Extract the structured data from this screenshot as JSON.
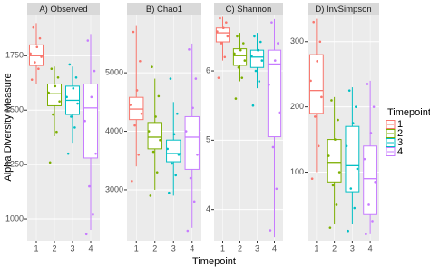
{
  "y_label": "Alpha Diversity Measure",
  "x_label": "Timepoint",
  "legend_title": "Timepoint",
  "chart_data": [
    {
      "type": "box",
      "title": "A) Observed",
      "categories": [
        "1",
        "2",
        "3",
        "4"
      ],
      "ylim": [
        900,
        1935
      ],
      "yticks": [
        1000,
        1250,
        1500,
        1750
      ],
      "series": [
        {
          "name": "1",
          "color": "#F8766D",
          "box": {
            "min": 1620,
            "q1": 1705,
            "median": 1750,
            "q3": 1800,
            "max": 1900
          },
          "points": [
            1640,
            1690,
            1720,
            1745,
            1760,
            1790,
            1830,
            1880
          ]
        },
        {
          "name": "2",
          "color": "#7CAE00",
          "box": {
            "min": 1380,
            "q1": 1520,
            "median": 1575,
            "q3": 1620,
            "max": 1700
          },
          "points": [
            1260,
            1400,
            1480,
            1540,
            1580,
            1610,
            1650,
            1690
          ]
        },
        {
          "name": "3",
          "color": "#00BFC4",
          "box": {
            "min": 1350,
            "q1": 1480,
            "median": 1545,
            "q3": 1610,
            "max": 1700
          },
          "points": [
            1300,
            1420,
            1470,
            1530,
            1560,
            1600,
            1650,
            1710
          ]
        },
        {
          "name": "4",
          "color": "#C77CFF",
          "box": {
            "min": 950,
            "q1": 1280,
            "median": 1510,
            "q3": 1620,
            "max": 1850
          },
          "points": [
            930,
            1020,
            1150,
            1300,
            1450,
            1560,
            1680,
            1820
          ]
        }
      ]
    },
    {
      "type": "box",
      "title": "B) Chao1",
      "categories": [
        "1",
        "2",
        "3",
        "4"
      ],
      "ylim": [
        2130,
        5980
      ],
      "yticks": [
        3000,
        4000,
        5000
      ],
      "series": [
        {
          "name": "1",
          "color": "#F8766D",
          "box": {
            "min": 3400,
            "q1": 4200,
            "median": 4380,
            "q3": 4580,
            "max": 5800
          },
          "points": [
            3150,
            3600,
            4100,
            4300,
            4450,
            4700,
            5200,
            5700
          ]
        },
        {
          "name": "2",
          "color": "#7CAE00",
          "box": {
            "min": 3000,
            "q1": 3700,
            "median": 3900,
            "q3": 4150,
            "max": 4900
          },
          "points": [
            2900,
            3300,
            3650,
            3850,
            4000,
            4250,
            4600,
            5100
          ]
        },
        {
          "name": "3",
          "color": "#00BFC4",
          "box": {
            "min": 2900,
            "q1": 3480,
            "median": 3620,
            "q3": 3850,
            "max": 4500
          },
          "points": [
            2950,
            3250,
            3450,
            3600,
            3700,
            3950,
            4300,
            4900
          ]
        },
        {
          "name": "4",
          "color": "#C77CFF",
          "box": {
            "min": 2350,
            "q1": 3350,
            "median": 3900,
            "q3": 4250,
            "max": 5500
          },
          "points": [
            2300,
            2800,
            3200,
            3600,
            4000,
            4400,
            4900,
            5400
          ]
        }
      ]
    },
    {
      "type": "box",
      "title": "C) Shannon",
      "categories": [
        "1",
        "2",
        "3",
        "4"
      ],
      "ylim": [
        3.55,
        6.8
      ],
      "yticks": [
        4,
        5,
        6
      ],
      "series": [
        {
          "name": "1",
          "color": "#F8766D",
          "box": {
            "min": 6.15,
            "q1": 6.42,
            "median": 6.55,
            "q3": 6.62,
            "max": 6.78
          },
          "points": [
            5.9,
            6.2,
            6.4,
            6.5,
            6.57,
            6.62,
            6.7,
            6.76
          ]
        },
        {
          "name": "2",
          "color": "#7CAE00",
          "box": {
            "min": 5.85,
            "q1": 6.08,
            "median": 6.22,
            "q3": 6.32,
            "max": 6.55
          },
          "points": [
            5.6,
            5.9,
            6.05,
            6.15,
            6.25,
            6.3,
            6.4,
            6.5
          ]
        },
        {
          "name": "3",
          "color": "#00BFC4",
          "box": {
            "min": 5.75,
            "q1": 6.05,
            "median": 6.2,
            "q3": 6.3,
            "max": 6.55
          },
          "points": [
            5.5,
            5.85,
            6.0,
            6.15,
            6.22,
            6.3,
            6.42,
            6.5
          ]
        },
        {
          "name": "4",
          "color": "#C77CFF",
          "box": {
            "min": 3.6,
            "q1": 5.05,
            "median": 6.1,
            "q3": 6.3,
            "max": 6.75
          },
          "points": [
            3.7,
            4.3,
            4.9,
            5.4,
            5.8,
            6.15,
            6.4,
            6.7
          ]
        }
      ]
    },
    {
      "type": "box",
      "title": "D) InvSimpson",
      "categories": [
        "1",
        "2",
        "3",
        "4"
      ],
      "ylim": [
        -5,
        340
      ],
      "yticks": [
        100,
        200,
        300
      ],
      "series": [
        {
          "name": "1",
          "color": "#F8766D",
          "box": {
            "min": 100,
            "q1": 190,
            "median": 225,
            "q3": 280,
            "max": 335
          },
          "points": [
            90,
            140,
            185,
            215,
            240,
            270,
            300,
            330
          ]
        },
        {
          "name": "2",
          "color": "#7CAE00",
          "box": {
            "min": 20,
            "q1": 85,
            "median": 115,
            "q3": 150,
            "max": 215
          },
          "points": [
            15,
            50,
            80,
            100,
            125,
            150,
            180,
            210
          ]
        },
        {
          "name": "3",
          "color": "#00BFC4",
          "box": {
            "min": 20,
            "q1": 70,
            "median": 110,
            "q3": 170,
            "max": 230
          },
          "points": [
            10,
            45,
            75,
            105,
            140,
            175,
            200,
            225
          ]
        },
        {
          "name": "4",
          "color": "#C77CFF",
          "box": {
            "min": 5,
            "q1": 35,
            "median": 90,
            "q3": 140,
            "max": 240
          },
          "points": [
            5,
            25,
            50,
            85,
            120,
            160,
            200,
            235
          ]
        }
      ]
    }
  ]
}
